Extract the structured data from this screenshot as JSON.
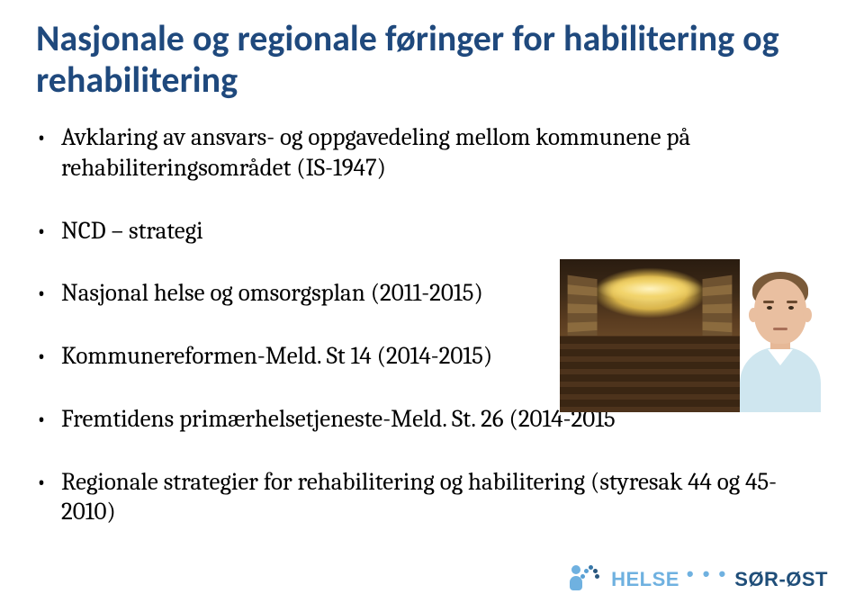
{
  "title": "Nasjonale og regionale føringer for habilitering og rehabilitering",
  "bullets": [
    "Avklaring av ansvars- og oppgavedeling mellom kommunene på rehabiliteringsområdet (IS-1947)",
    "NCD – strategi",
    "Nasjonal helse og omsorgsplan (2011-2015)",
    "Kommunereformen-Meld. St 14 (2014-2015)",
    "Fremtidens primærhelsetjeneste-Meld. St. 26 (2014-2015",
    "Regionale strategier for rehabilitering og habilitering (styresak 44 og 45- 2010)"
  ],
  "logo": {
    "helse": "HELSE",
    "dots": "• • •",
    "sorost": "SØR-ØST"
  },
  "colors": {
    "title": "#1f497d",
    "text": "#000000",
    "logo_light": "#6fb1e0",
    "logo_dark": "#1f4e79",
    "background": "#ffffff"
  }
}
